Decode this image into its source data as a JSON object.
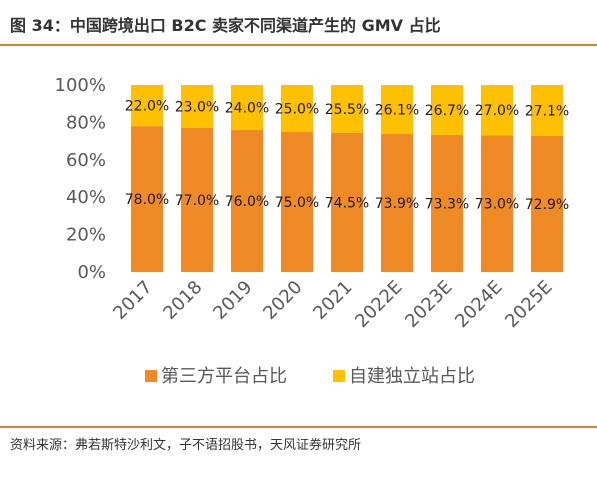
{
  "header": {
    "title": "图 34：中国跨境出口 B2C 卖家不同渠道产生的 GMV 占比"
  },
  "footer": {
    "source": "资料来源：弗若斯特沙利文，子不语招股书，天风证券研究所"
  },
  "colors": {
    "accent_rule": "#d9822b",
    "series_1": "#f08a24",
    "series_2": "#ffc000"
  },
  "chart_data": {
    "type": "bar",
    "stacked": true,
    "categories": [
      "2017",
      "2018",
      "2019",
      "2020",
      "2021",
      "2022E",
      "2023E",
      "2024E",
      "2025E"
    ],
    "series": [
      {
        "name": "第三方平台占比",
        "color": "#f08a24",
        "values": [
          78.0,
          77.0,
          76.0,
          75.0,
          74.5,
          73.9,
          73.3,
          73.0,
          72.9
        ],
        "labels": [
          "78.0%",
          "77.0%",
          "76.0%",
          "75.0%",
          "74.5%",
          "73.9%",
          "73.3%",
          "73.0%",
          "72.9%"
        ]
      },
      {
        "name": "自建独立站占比",
        "color": "#ffc000",
        "values": [
          22.0,
          23.0,
          24.0,
          25.0,
          25.5,
          26.1,
          26.7,
          27.0,
          27.1
        ],
        "labels": [
          "22.0%",
          "23.0%",
          "24.0%",
          "25.0%",
          "25.5%",
          "26.1%",
          "26.7%",
          "27.0%",
          "27.1%"
        ]
      }
    ],
    "y_ticks": [
      "0%",
      "20%",
      "40%",
      "60%",
      "80%",
      "100%"
    ],
    "y_tick_values": [
      0,
      20,
      40,
      60,
      80,
      100
    ],
    "ylim": [
      0,
      100
    ],
    "grid": false,
    "legend": "bottom"
  }
}
